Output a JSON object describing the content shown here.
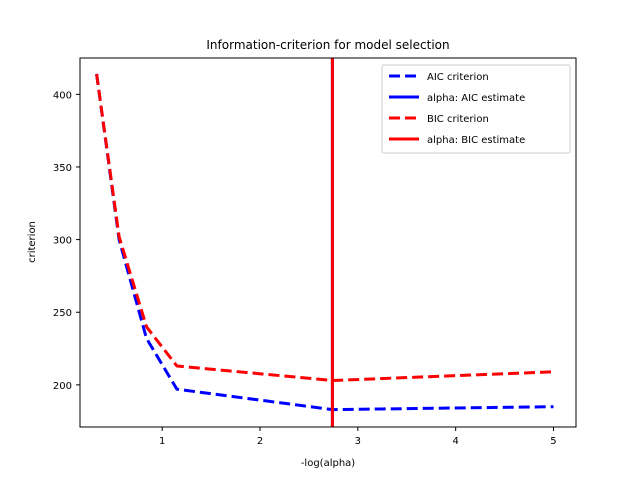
{
  "chart_data": {
    "type": "line",
    "title": "Information-criterion for model selection",
    "xlabel": "-log(alpha)",
    "ylabel": "criterion",
    "xlim": [
      0.16,
      5.23
    ],
    "ylim": [
      171,
      425
    ],
    "xticks": [
      1,
      2,
      3,
      4,
      5
    ],
    "yticks": [
      200,
      250,
      300,
      350,
      400
    ],
    "grid": false,
    "legend_position": "upper right",
    "series": [
      {
        "name": "AIC criterion",
        "color": "#0000ff",
        "style": "dashed",
        "x": [
          0.33,
          0.56,
          0.84,
          1.15,
          2.74,
          5.0
        ],
        "y": [
          414,
          300,
          232,
          197,
          183,
          185
        ]
      },
      {
        "name": "BIC criterion",
        "color": "#ff0000",
        "style": "dashed",
        "x": [
          0.33,
          0.56,
          0.84,
          1.15,
          2.74,
          5.0
        ],
        "y": [
          414,
          302,
          240,
          213,
          203,
          209
        ]
      }
    ],
    "vlines": [
      {
        "name": "alpha: AIC estimate",
        "color": "#0000ff",
        "x": 2.74
      },
      {
        "name": "alpha: BIC estimate",
        "color": "#ff0000",
        "x": 2.74
      }
    ]
  }
}
